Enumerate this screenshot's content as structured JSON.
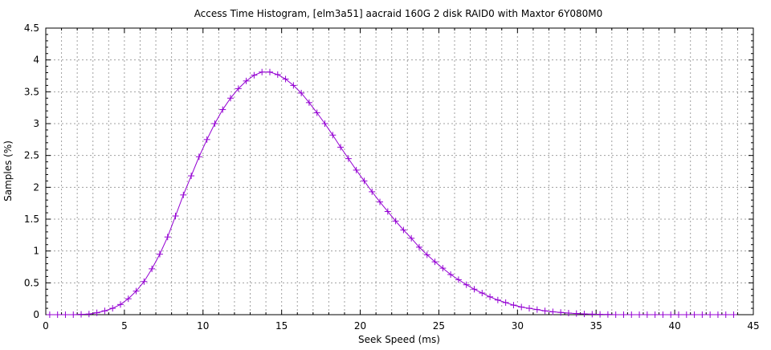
{
  "chart_data": {
    "type": "line",
    "title": "Access Time Histogram, [elm3a51] aacraid 160G 2 disk RAID0 with Maxtor 6Y080M0",
    "xlabel": "Seek Speed (ms)",
    "ylabel": "Samples (%)",
    "xlim": [
      0,
      45
    ],
    "ylim": [
      0,
      4.5
    ],
    "xticks": [
      "0",
      "5",
      "10",
      "15",
      "20",
      "25",
      "30",
      "35",
      "40",
      "45"
    ],
    "yticks": [
      "0",
      "0.5",
      "1",
      "1.5",
      "2",
      "2.5",
      "3",
      "3.5",
      "4",
      "4.5"
    ],
    "grid": true,
    "series": [
      {
        "name": "access time",
        "color": "#9400d3",
        "x": [
          0.25,
          0.75,
          1.25,
          1.75,
          2.25,
          2.75,
          3.25,
          3.75,
          4.25,
          4.75,
          5.25,
          5.75,
          6.25,
          6.75,
          7.25,
          7.75,
          8.25,
          8.75,
          9.25,
          9.75,
          10.25,
          10.75,
          11.25,
          11.75,
          12.25,
          12.75,
          13.25,
          13.75,
          14.25,
          14.75,
          15.25,
          15.75,
          16.25,
          16.75,
          17.25,
          17.75,
          18.25,
          18.75,
          19.25,
          19.75,
          20.25,
          20.75,
          21.25,
          21.75,
          22.25,
          22.75,
          23.25,
          23.75,
          24.25,
          24.75,
          25.25,
          25.75,
          26.25,
          26.75,
          27.25,
          27.75,
          28.25,
          28.75,
          29.25,
          29.75,
          30.25,
          30.75,
          31.25,
          31.75,
          32.25,
          32.75,
          33.25,
          33.75,
          34.25,
          34.75,
          35.25,
          35.75,
          36.25,
          36.75,
          37.25,
          37.75,
          38.25,
          38.75,
          39.25,
          39.75,
          40.25,
          40.75,
          41.25,
          41.75,
          42.25,
          42.75,
          43.25,
          43.75
        ],
        "values": [
          0,
          0,
          0,
          0,
          0.005,
          0.01,
          0.03,
          0.06,
          0.1,
          0.16,
          0.25,
          0.37,
          0.52,
          0.72,
          0.95,
          1.22,
          1.55,
          1.88,
          2.18,
          2.48,
          2.75,
          3.0,
          3.22,
          3.4,
          3.55,
          3.67,
          3.76,
          3.81,
          3.81,
          3.77,
          3.7,
          3.6,
          3.48,
          3.33,
          3.17,
          3.0,
          2.82,
          2.63,
          2.45,
          2.27,
          2.1,
          1.93,
          1.77,
          1.62,
          1.47,
          1.33,
          1.2,
          1.06,
          0.94,
          0.83,
          0.73,
          0.63,
          0.55,
          0.47,
          0.4,
          0.34,
          0.28,
          0.23,
          0.19,
          0.15,
          0.12,
          0.1,
          0.08,
          0.06,
          0.045,
          0.035,
          0.025,
          0.018,
          0.012,
          0.008,
          0.005,
          0.003,
          0,
          0,
          0,
          0,
          0,
          0,
          0,
          0,
          0,
          0,
          0,
          0,
          0,
          0,
          0,
          0
        ]
      }
    ]
  }
}
